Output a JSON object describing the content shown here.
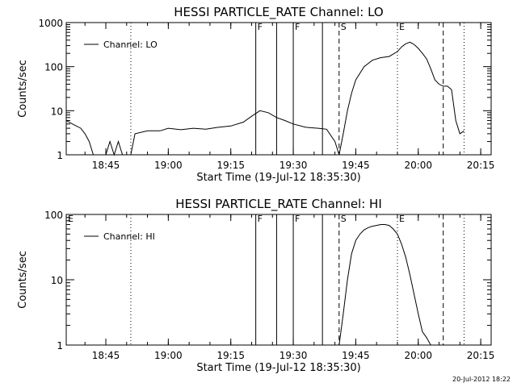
{
  "window": {
    "timestamp": "20-Jul-2012 18:22"
  },
  "chart_data": [
    {
      "type": "line",
      "title": "HESSI PARTICLE_RATE Channel: LO",
      "xlabel": "Start Time (19-Jul-12 18:35:30)",
      "ylabel": "Counts/sec",
      "yscale": "log",
      "ylim": [
        1,
        1000
      ],
      "xlim_minutes_after_start": [
        0,
        102
      ],
      "x_ticks": [
        "18:45",
        "19:00",
        "19:15",
        "19:30",
        "19:45",
        "20:00",
        "20:15"
      ],
      "y_ticks": [
        "1",
        "10",
        "100",
        "1000"
      ],
      "legend": {
        "position": "top-left",
        "entries": [
          "Channel: LO"
        ]
      },
      "markers": [
        {
          "label": "",
          "time": "18:51",
          "style": "dotted"
        },
        {
          "label": "F",
          "time": "19:21",
          "style": "solid"
        },
        {
          "label": "",
          "time": "19:26",
          "style": "solid"
        },
        {
          "label": "F",
          "time": "19:30",
          "style": "solid"
        },
        {
          "label": "",
          "time": "19:37",
          "style": "solid"
        },
        {
          "label": "S",
          "time": "19:41",
          "style": "dashed"
        },
        {
          "label": "E",
          "time": "19:55",
          "style": "dotted"
        },
        {
          "label": "",
          "time": "20:06",
          "style": "dashed"
        },
        {
          "label": "",
          "time": "20:11",
          "style": "dotted"
        }
      ],
      "series": [
        {
          "name": "Channel: LO",
          "x": [
            "18:35:30",
            "18:37",
            "18:39",
            "18:40",
            "18:41",
            "18:42",
            "18:44",
            "18:45",
            "18:46",
            "18:47",
            "18:48",
            "18:49",
            "18:50",
            "18:51",
            "18:52",
            "18:55",
            "18:58",
            "19:00",
            "19:03",
            "19:06",
            "19:09",
            "19:12",
            "19:15",
            "19:18",
            "19:20",
            "19:22",
            "19:24",
            "19:26",
            "19:28",
            "19:30",
            "19:33",
            "19:36",
            "19:38",
            "19:40",
            "19:41",
            "19:42",
            "19:43",
            "19:44",
            "19:45",
            "19:47",
            "19:49",
            "19:51",
            "19:53",
            "19:55",
            "19:56",
            "19:57",
            "19:58",
            "19:59",
            "20:00",
            "20:01",
            "20:02",
            "20:03",
            "20:04",
            "20:05",
            "20:06",
            "20:07",
            "20:08",
            "20:09",
            "20:10",
            "20:11"
          ],
          "y": [
            6,
            5,
            4,
            3,
            2,
            1,
            1,
            1,
            2,
            1,
            2,
            1,
            1,
            1,
            3,
            3.5,
            3.5,
            4,
            3.7,
            4,
            3.8,
            4.2,
            4.5,
            5.5,
            7.5,
            10,
            9,
            7,
            6,
            5,
            4.2,
            4,
            3.8,
            2,
            1,
            3,
            10,
            25,
            50,
            100,
            140,
            160,
            170,
            220,
            280,
            330,
            360,
            320,
            260,
            200,
            150,
            90,
            50,
            40,
            36,
            36,
            30,
            6,
            3,
            3.5
          ]
        }
      ]
    },
    {
      "type": "line",
      "title": "HESSI PARTICLE_RATE Channel: HI",
      "xlabel": "Start Time (19-Jul-12 18:35:30)",
      "ylabel": "Counts/sec",
      "yscale": "log",
      "ylim": [
        1,
        100
      ],
      "xlim_minutes_after_start": [
        0,
        102
      ],
      "x_ticks": [
        "18:45",
        "19:00",
        "19:15",
        "19:30",
        "19:45",
        "20:00",
        "20:15"
      ],
      "y_ticks": [
        "1",
        "10",
        "100"
      ],
      "legend": {
        "position": "top-left",
        "entries": [
          "Channel: HI"
        ]
      },
      "markers": [
        {
          "label": "E",
          "time": "18:35:30",
          "style": "none"
        },
        {
          "label": "",
          "time": "18:51",
          "style": "dotted"
        },
        {
          "label": "F",
          "time": "19:21",
          "style": "solid"
        },
        {
          "label": "",
          "time": "19:26",
          "style": "solid"
        },
        {
          "label": "F",
          "time": "19:30",
          "style": "solid"
        },
        {
          "label": "",
          "time": "19:37",
          "style": "solid"
        },
        {
          "label": "S",
          "time": "19:41",
          "style": "dashed"
        },
        {
          "label": "E",
          "time": "19:55",
          "style": "dotted"
        },
        {
          "label": "",
          "time": "20:06",
          "style": "dashed"
        },
        {
          "label": "",
          "time": "20:11",
          "style": "dotted"
        }
      ],
      "series": [
        {
          "name": "Channel: HI",
          "x": [
            "19:41",
            "19:42",
            "19:43",
            "19:44",
            "19:45",
            "19:46",
            "19:47",
            "19:48",
            "19:49",
            "19:50",
            "19:51",
            "19:52",
            "19:53",
            "19:54",
            "19:55",
            "19:56",
            "19:57",
            "19:58",
            "19:59",
            "20:00",
            "20:01",
            "20:02",
            "20:03"
          ],
          "y": [
            1,
            3,
            10,
            25,
            40,
            50,
            58,
            63,
            66,
            68,
            70,
            70,
            68,
            60,
            50,
            35,
            22,
            12,
            6,
            3,
            1.6,
            1.3,
            1
          ]
        }
      ]
    }
  ]
}
